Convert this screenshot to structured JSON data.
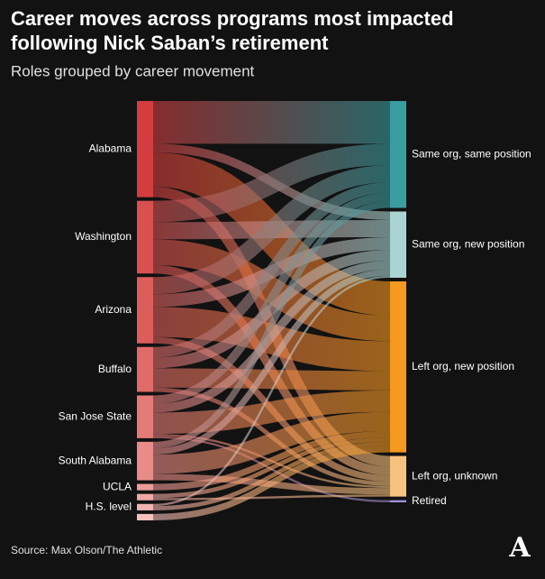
{
  "chart_data": {
    "type": "sankey",
    "title": "Career moves across programs most impacted following Nick Saban’s retirement",
    "subtitle": "Roles grouped by career movement",
    "source": "Source: Max Olson/The Athletic",
    "logo": "A",
    "sources": [
      {
        "name": "Alabama",
        "color": "#d43d3f"
      },
      {
        "name": "Washington",
        "color": "#d9504f"
      },
      {
        "name": "Arizona",
        "color": "#dd5d5b"
      },
      {
        "name": "Buffalo",
        "color": "#e16b69"
      },
      {
        "name": "San Jose State",
        "color": "#e57b78"
      },
      {
        "name": "South Alabama",
        "color": "#e98b88"
      },
      {
        "name": "UCLA",
        "color": "#ed9c99"
      },
      {
        "name": null,
        "color": "#efa8a5"
      },
      {
        "name": "H.S. level",
        "color": "#f2b4b1"
      },
      {
        "name": null,
        "color": "#f4c0bd"
      }
    ],
    "targets": [
      {
        "name": "Same org, same position",
        "color": "#3a9ea1"
      },
      {
        "name": "Same org, new position",
        "color": "#a9d4d3"
      },
      {
        "name": "Left org, new position",
        "color": "#f5991f"
      },
      {
        "name": "Left org, unknown",
        "color": "#f6c27d"
      },
      {
        "name": "Retired",
        "color": "#9d90d8"
      }
    ],
    "links": [
      {
        "source": 0,
        "target": 0,
        "value": 20
      },
      {
        "source": 0,
        "target": 1,
        "value": 4
      },
      {
        "source": 0,
        "target": 2,
        "value": 16
      },
      {
        "source": 0,
        "target": 3,
        "value": 5
      },
      {
        "source": 1,
        "target": 0,
        "value": 10
      },
      {
        "source": 1,
        "target": 1,
        "value": 8
      },
      {
        "source": 1,
        "target": 2,
        "value": 12
      },
      {
        "source": 1,
        "target": 3,
        "value": 4
      },
      {
        "source": 2,
        "target": 0,
        "value": 8
      },
      {
        "source": 2,
        "target": 1,
        "value": 6
      },
      {
        "source": 2,
        "target": 2,
        "value": 14
      },
      {
        "source": 2,
        "target": 3,
        "value": 3
      },
      {
        "source": 3,
        "target": 0,
        "value": 5
      },
      {
        "source": 3,
        "target": 1,
        "value": 5
      },
      {
        "source": 3,
        "target": 2,
        "value": 9
      },
      {
        "source": 3,
        "target": 3,
        "value": 2
      },
      {
        "source": 4,
        "target": 0,
        "value": 4
      },
      {
        "source": 4,
        "target": 1,
        "value": 4
      },
      {
        "source": 4,
        "target": 2,
        "value": 10
      },
      {
        "source": 4,
        "target": 3,
        "value": 1
      },
      {
        "source": 4,
        "target": 4,
        "value": 1
      },
      {
        "source": 5,
        "target": 0,
        "value": 3
      },
      {
        "source": 5,
        "target": 1,
        "value": 3
      },
      {
        "source": 5,
        "target": 2,
        "value": 9
      },
      {
        "source": 5,
        "target": 3,
        "value": 3
      },
      {
        "source": 6,
        "target": 2,
        "value": 3
      },
      {
        "source": 7,
        "target": 2,
        "value": 2
      },
      {
        "source": 7,
        "target": 3,
        "value": 1
      },
      {
        "source": 8,
        "target": 1,
        "value": 1
      },
      {
        "source": 8,
        "target": 2,
        "value": 2
      },
      {
        "source": 9,
        "target": 2,
        "value": 3
      }
    ]
  }
}
